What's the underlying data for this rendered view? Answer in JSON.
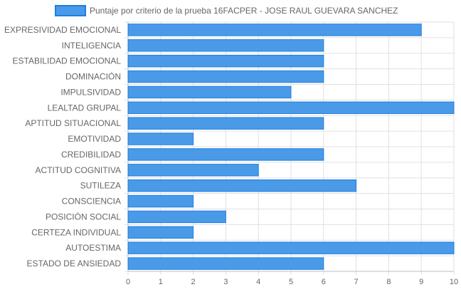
{
  "chart_data": {
    "type": "bar",
    "orientation": "horizontal",
    "legend_position": "top",
    "grid": true,
    "xlim": [
      0,
      10
    ],
    "x_ticks": [
      0,
      1,
      2,
      3,
      4,
      5,
      6,
      7,
      8,
      9,
      10
    ],
    "categories": [
      "EXPRESIVIDAD EMOCIONAL",
      "INTELIGENCIA",
      "ESTABILIDAD EMOCIONAL",
      "DOMINACIÓN",
      "IMPULSIVIDAD",
      "LEALTAD GRUPAL",
      "APTITUD SITUACIONAL",
      "EMOTIVIDAD",
      "CREDIBILIDAD",
      "ACTITUD COGNITIVA",
      "SUTILEZA",
      "CONSCIENCIA",
      "POSICIÓN SOCIAL",
      "CERTEZA INDIVIDUAL",
      "AUTOESTIMA",
      "ESTADO DE ANSIEDAD"
    ],
    "series": [
      {
        "name": "Puntaje por criterio de la prueba 16FACPER - JOSE RAUL GUEVARA SANCHEZ",
        "color": "#4a9ae8",
        "border_color": "#1e7fe0",
        "values": [
          9,
          6,
          6,
          6,
          5,
          10,
          6,
          2,
          6,
          4,
          7,
          2,
          3,
          2,
          10,
          6
        ]
      }
    ]
  }
}
